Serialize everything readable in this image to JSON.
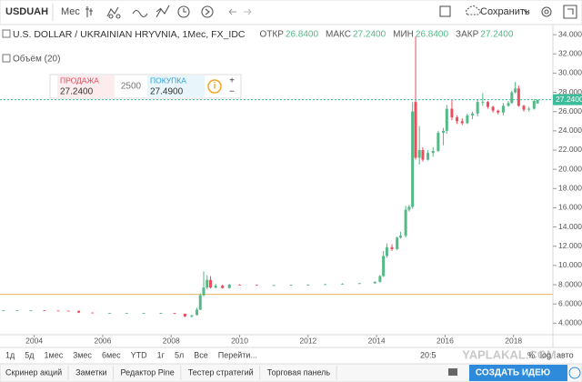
{
  "toolbar": {
    "symbol": "USDUAH",
    "interval": "Мес",
    "save": "Сохранить"
  },
  "legend": {
    "title": "U.S. DOLLAR / UKRAINIAN HRYVNIA, 1Мес, FX_IDC",
    "items": [
      {
        "label": "ОТКР",
        "value": "26.8400"
      },
      {
        "label": "МАКС",
        "value": "27.2400"
      },
      {
        "label": "МИН",
        "value": "26.8400"
      },
      {
        "label": "ЗАКР",
        "value": "27.2400"
      }
    ]
  },
  "volume_label": "Объём (20)",
  "trade": {
    "sell_label": "ПРОДАЖА",
    "sell": "27.2400",
    "qty": "2500",
    "buy_label": "ПОКУПКА",
    "buy": "27.4900"
  },
  "chart_data": {
    "type": "candlestick",
    "x": [
      2003.1,
      2003.5,
      2003.9,
      2004.3,
      2004.7,
      2005.0,
      2005.3,
      2005.7,
      2006.2,
      2006.7,
      2007.2,
      2007.7,
      2008.1,
      2008.4,
      2008.6,
      2008.75,
      2008.85,
      2008.95,
      2009.05,
      2009.15,
      2009.3,
      2009.5,
      2009.7,
      2010.0,
      2010.5,
      2011.0,
      2011.5,
      2012.0,
      2012.5,
      2013.0,
      2013.5,
      2013.95,
      2014.1,
      2014.2,
      2014.3,
      2014.45,
      2014.6,
      2014.7,
      2014.85,
      2014.95,
      2015.05,
      2015.14,
      2015.25,
      2015.35,
      2015.5,
      2015.65,
      2015.8,
      2015.95,
      2016.05,
      2016.2,
      2016.35,
      2016.5,
      2016.65,
      2016.8,
      2016.95,
      2017.1,
      2017.25,
      2017.4,
      2017.55,
      2017.7,
      2017.85,
      2017.95,
      2018.05,
      2018.15,
      2018.3,
      2018.45,
      2018.6,
      2018.7
    ],
    "open": [
      5.33,
      5.33,
      5.33,
      5.33,
      5.31,
      5.3,
      5.28,
      5.1,
      5.05,
      5.05,
      5.05,
      5.05,
      5.05,
      4.98,
      4.7,
      4.85,
      5.4,
      6.9,
      7.7,
      8.5,
      7.7,
      7.9,
      7.65,
      8.0,
      7.98,
      7.92,
      7.95,
      7.98,
      8.0,
      8.05,
      8.1,
      8.15,
      8.3,
      8.9,
      11.0,
      11.9,
      11.7,
      12.9,
      13.1,
      15.8,
      16.1,
      27.0,
      21.2,
      22.0,
      21.0,
      21.7,
      21.9,
      23.8,
      24.0,
      26.3,
      25.4,
      25.0,
      24.8,
      25.6,
      25.8,
      27.0,
      27.0,
      26.5,
      26.1,
      25.9,
      26.6,
      26.9,
      28.0,
      28.4,
      26.6,
      26.2,
      26.3,
      26.84
    ],
    "high": [
      5.35,
      5.34,
      5.34,
      5.34,
      5.32,
      5.31,
      5.3,
      5.12,
      5.07,
      5.07,
      5.07,
      5.07,
      5.06,
      5.0,
      4.85,
      5.6,
      7.1,
      9.4,
      9.0,
      8.9,
      8.1,
      8.0,
      8.1,
      8.05,
      8.0,
      7.99,
      8.0,
      8.05,
      8.08,
      8.15,
      8.2,
      8.35,
      9.0,
      11.5,
      12.3,
      12.2,
      13.0,
      13.5,
      16.2,
      16.3,
      27.0,
      33.8,
      24.5,
      22.3,
      22.0,
      22.3,
      24.0,
      24.3,
      26.7,
      27.2,
      25.6,
      25.3,
      25.8,
      26.0,
      27.2,
      27.9,
      27.1,
      26.6,
      26.2,
      26.9,
      27.1,
      28.2,
      29.1,
      28.7,
      26.7,
      26.5,
      27.3,
      27.24
    ],
    "low": [
      5.32,
      5.32,
      5.32,
      5.31,
      5.29,
      5.25,
      5.05,
      5.04,
      5.03,
      5.03,
      5.03,
      5.03,
      4.95,
      4.62,
      4.6,
      4.8,
      5.35,
      6.8,
      7.5,
      7.6,
      7.6,
      7.6,
      7.6,
      7.95,
      7.9,
      7.9,
      7.95,
      7.96,
      7.98,
      8.02,
      8.1,
      8.1,
      8.2,
      8.8,
      10.8,
      11.5,
      11.6,
      12.8,
      12.9,
      15.6,
      15.9,
      21.0,
      20.5,
      20.8,
      20.9,
      21.3,
      21.8,
      22.5,
      23.7,
      25.1,
      24.7,
      24.6,
      24.7,
      25.2,
      25.5,
      26.6,
      26.3,
      25.9,
      25.7,
      25.6,
      26.5,
      26.8,
      27.9,
      26.5,
      26.0,
      26.0,
      26.2,
      26.84
    ],
    "close": [
      5.33,
      5.33,
      5.33,
      5.31,
      5.3,
      5.28,
      5.1,
      5.05,
      5.05,
      5.05,
      5.05,
      5.05,
      4.98,
      4.7,
      4.82,
      5.4,
      6.9,
      7.7,
      8.5,
      7.7,
      7.9,
      7.65,
      8.0,
      7.98,
      7.92,
      7.95,
      7.98,
      8.0,
      8.05,
      8.1,
      8.15,
      8.3,
      8.9,
      11.0,
      11.9,
      11.7,
      12.9,
      13.1,
      15.8,
      16.1,
      26.0,
      21.2,
      22.0,
      21.0,
      21.7,
      21.9,
      23.8,
      24.0,
      26.3,
      25.4,
      25.0,
      24.8,
      25.6,
      25.8,
      27.0,
      27.0,
      26.5,
      26.1,
      25.9,
      26.6,
      26.9,
      28.0,
      28.4,
      26.6,
      26.2,
      26.3,
      27.1,
      27.24
    ],
    "xlim": [
      2003,
      2019.15
    ],
    "xticks": [
      2004,
      2006,
      2008,
      2010,
      2012,
      2014,
      2016,
      2018
    ],
    "ylim": [
      2.8,
      35.05
    ],
    "yticks": [
      {
        "value": 4,
        "label": "4.0000"
      },
      {
        "value": 6,
        "label": "6.0000"
      },
      {
        "value": 8,
        "label": "8.0000"
      },
      {
        "value": 10,
        "label": "10.0000"
      },
      {
        "value": 12,
        "label": "12.0000"
      },
      {
        "value": 14,
        "label": "14.0000"
      },
      {
        "value": 16,
        "label": "16.0000"
      },
      {
        "value": 18,
        "label": "18.0000"
      },
      {
        "value": 20,
        "label": "20.0000"
      },
      {
        "value": 22,
        "label": "22.0000"
      },
      {
        "value": 24,
        "label": "24.0000"
      },
      {
        "value": 26,
        "label": "26.0000"
      },
      {
        "value": 28,
        "label": "28.0000"
      },
      {
        "value": 30,
        "label": "30.0000"
      },
      {
        "value": 32,
        "label": "32.0000"
      },
      {
        "value": 34,
        "label": "34.0000"
      }
    ],
    "up_color": "#53b987",
    "down_color": "#eb4d5c",
    "last_price": {
      "value": 27.24,
      "label": "27.2400",
      "color": "#3cbc98"
    },
    "hline": {
      "value": 7.0,
      "color": "#e8c27a"
    }
  },
  "ranges": [
    "1д",
    "5д",
    "1мес",
    "3мес",
    "6мес",
    "YTD",
    "1г",
    "5л",
    "Все",
    "Перейти..."
  ],
  "time": "20:5",
  "scale": [
    "%",
    "log",
    "авто"
  ],
  "tabs": [
    "Скринер акций",
    "Заметки",
    "Редактор Pine",
    "Тестер стратегий",
    "Торговая панель"
  ],
  "cta": "СОЗДАТЬ ИДЕЮ",
  "watermark": "YAPLAKAL.COM"
}
